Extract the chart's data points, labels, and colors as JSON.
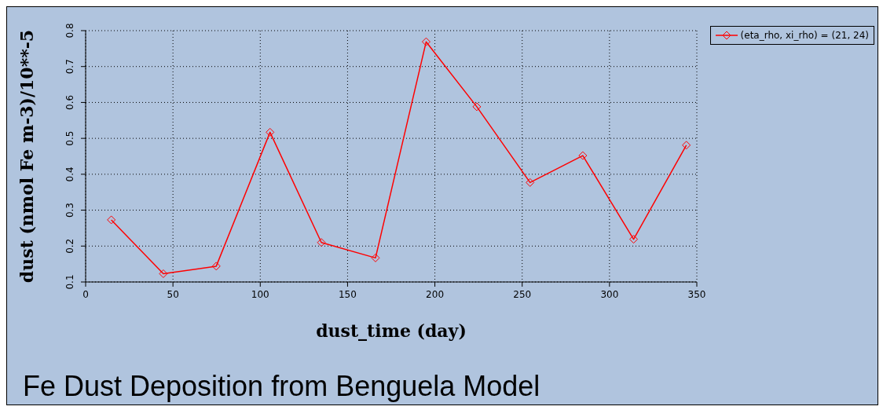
{
  "chart_data": {
    "type": "line",
    "title": "Fe Dust Deposition from Benguela Model",
    "xlabel": "dust_time (day)",
    "ylabel": "dust (nmol Fe m-3)/10**-5",
    "x": [
      14.7,
      44.5,
      74.8,
      105.6,
      135,
      166,
      195,
      224,
      254.5,
      284.7,
      313.8,
      344
    ],
    "series": [
      {
        "name": "(eta_rho, xi_rho) = (21, 24)",
        "color": "#ff0000",
        "values": [
          0.273,
          0.123,
          0.144,
          0.517,
          0.21,
          0.167,
          0.769,
          0.588,
          0.377,
          0.452,
          0.219,
          0.481
        ]
      }
    ],
    "xlim": [
      0,
      350
    ],
    "xticks": [
      0,
      50,
      100,
      150,
      200,
      250,
      300,
      350
    ],
    "ylim": [
      0.1,
      0.8
    ],
    "yticks": [
      0.1,
      0.2,
      0.3,
      0.4,
      0.5,
      0.6,
      0.7,
      0.8
    ],
    "grid": true,
    "legend": "top right",
    "marker": "diamond",
    "line_style": "solid"
  }
}
